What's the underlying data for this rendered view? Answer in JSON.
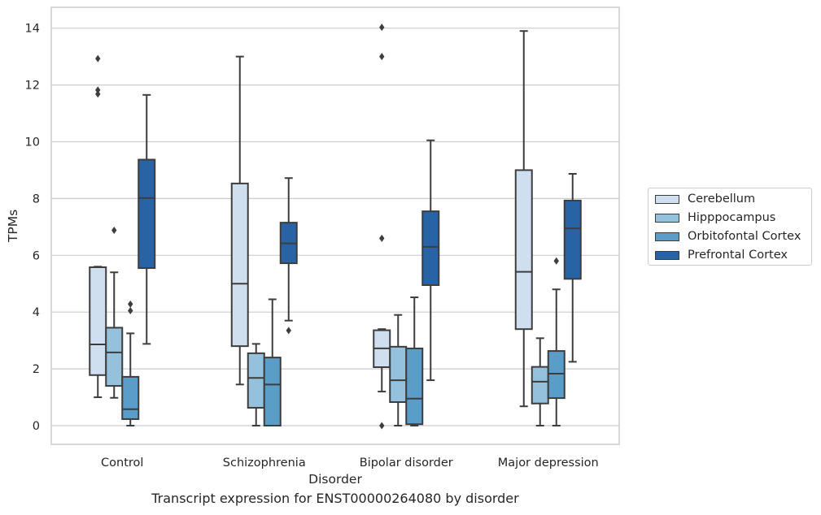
{
  "chart_data": {
    "type": "boxplot",
    "title": "Transcript expression for ENST00000264080 by disorder",
    "xlabel": "Disorder",
    "ylabel": "TPMs",
    "categories": [
      "Control",
      "Schizophrenia",
      "Bipolar disorder",
      "Major depression"
    ],
    "ylim": [
      -0.7,
      14.75
    ],
    "yticks": [
      0,
      2,
      4,
      6,
      8,
      10,
      12,
      14
    ],
    "grid": "horizontal",
    "legend_position": "right",
    "series": [
      {
        "name": "Cerebellum",
        "color": "#d0dfef",
        "boxes": [
          {
            "whisker_low": 1.0,
            "q1": 1.78,
            "median": 2.86,
            "q3": 5.58,
            "whisker_high": 5.6,
            "outliers": [
              11.68,
              11.82,
              12.93
            ]
          },
          {
            "whisker_low": 1.45,
            "q1": 2.8,
            "median": 5.0,
            "q3": 8.53,
            "whisker_high": 13.0,
            "outliers": []
          },
          {
            "whisker_low": 1.2,
            "q1": 2.06,
            "median": 2.72,
            "q3": 3.36,
            "whisker_high": 3.4,
            "outliers": [
              0.0,
              6.6,
              13.0,
              14.03
            ]
          },
          {
            "whisker_low": 0.68,
            "q1": 3.4,
            "median": 5.42,
            "q3": 9.0,
            "whisker_high": 13.9,
            "outliers": []
          }
        ]
      },
      {
        "name": "Hipppocampus",
        "color": "#95c1dd",
        "boxes": [
          {
            "whisker_low": 0.98,
            "q1": 1.4,
            "median": 2.58,
            "q3": 3.45,
            "whisker_high": 5.4,
            "outliers": [
              6.88
            ]
          },
          {
            "whisker_low": 0.0,
            "q1": 0.63,
            "median": 1.68,
            "q3": 2.55,
            "whisker_high": 2.88,
            "outliers": []
          },
          {
            "whisker_low": 0.0,
            "q1": 0.83,
            "median": 1.6,
            "q3": 2.78,
            "whisker_high": 3.9,
            "outliers": []
          },
          {
            "whisker_low": 0.0,
            "q1": 0.78,
            "median": 1.55,
            "q3": 2.07,
            "whisker_high": 3.08,
            "outliers": []
          }
        ]
      },
      {
        "name": "Orbitofontal Cortex",
        "color": "#5a9dc8",
        "boxes": [
          {
            "whisker_low": 0.0,
            "q1": 0.23,
            "median": 0.58,
            "q3": 1.72,
            "whisker_high": 3.25,
            "outliers": [
              4.05,
              4.28
            ]
          },
          {
            "whisker_low": 0.0,
            "q1": 0.0,
            "median": 1.45,
            "q3": 2.4,
            "whisker_high": 4.45,
            "outliers": []
          },
          {
            "whisker_low": 0.0,
            "q1": 0.05,
            "median": 0.95,
            "q3": 2.72,
            "whisker_high": 4.52,
            "outliers": []
          },
          {
            "whisker_low": 0.0,
            "q1": 0.97,
            "median": 1.83,
            "q3": 2.63,
            "whisker_high": 4.8,
            "outliers": [
              5.8
            ]
          }
        ]
      },
      {
        "name": "Prefrontal Cortex",
        "color": "#2864a5",
        "boxes": [
          {
            "whisker_low": 2.88,
            "q1": 5.55,
            "median": 8.02,
            "q3": 9.37,
            "whisker_high": 11.65,
            "outliers": []
          },
          {
            "whisker_low": 3.7,
            "q1": 5.72,
            "median": 6.42,
            "q3": 7.15,
            "whisker_high": 8.72,
            "outliers": [
              3.35
            ]
          },
          {
            "whisker_low": 1.6,
            "q1": 4.95,
            "median": 6.3,
            "q3": 7.55,
            "whisker_high": 10.05,
            "outliers": []
          },
          {
            "whisker_low": 2.25,
            "q1": 5.17,
            "median": 6.95,
            "q3": 7.93,
            "whisker_high": 8.87,
            "outliers": []
          }
        ]
      }
    ]
  }
}
